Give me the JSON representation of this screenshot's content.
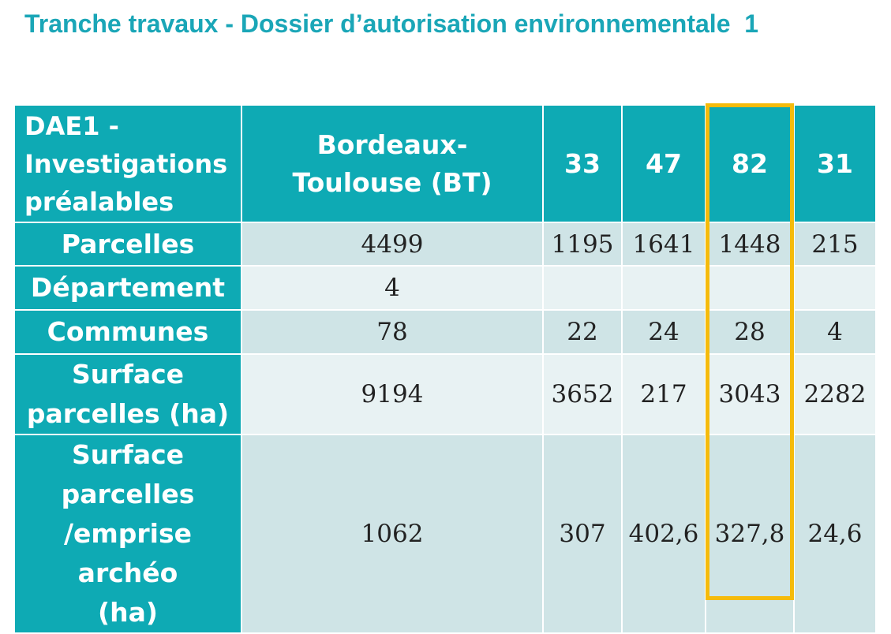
{
  "title": "Tranche travaux - Dossier d’autorisation environnementale  1",
  "table": {
    "corner_label": "DAE1 - Investigations préalables",
    "columns": [
      "Bordeaux-Toulouse (BT)",
      "33",
      "47",
      "82",
      "31"
    ],
    "rows": [
      {
        "label": "Parcelles",
        "values": [
          "4499",
          "1195",
          "1641",
          "1448",
          "215"
        ]
      },
      {
        "label": "Département",
        "values": [
          "4",
          "",
          "",
          "",
          ""
        ]
      },
      {
        "label": "Communes",
        "values": [
          "78",
          "22",
          "24",
          "28",
          "4"
        ]
      },
      {
        "label": "Surface parcelles (ha)",
        "values": [
          "9194",
          "3652",
          "217",
          "3043",
          "2282"
        ]
      },
      {
        "label": "Surface parcelles /emprise archéo (ha)",
        "values": [
          "1062",
          "307",
          "402,6",
          "327,8",
          "24,6"
        ]
      }
    ]
  },
  "highlight": {
    "column": "82",
    "color": "#f5bb0c"
  },
  "colors": {
    "header_bg": "#0eaab4",
    "title": "#1aa6b7",
    "row_band_dark": "#cfe4e6",
    "row_band_light": "#e8f2f3"
  }
}
